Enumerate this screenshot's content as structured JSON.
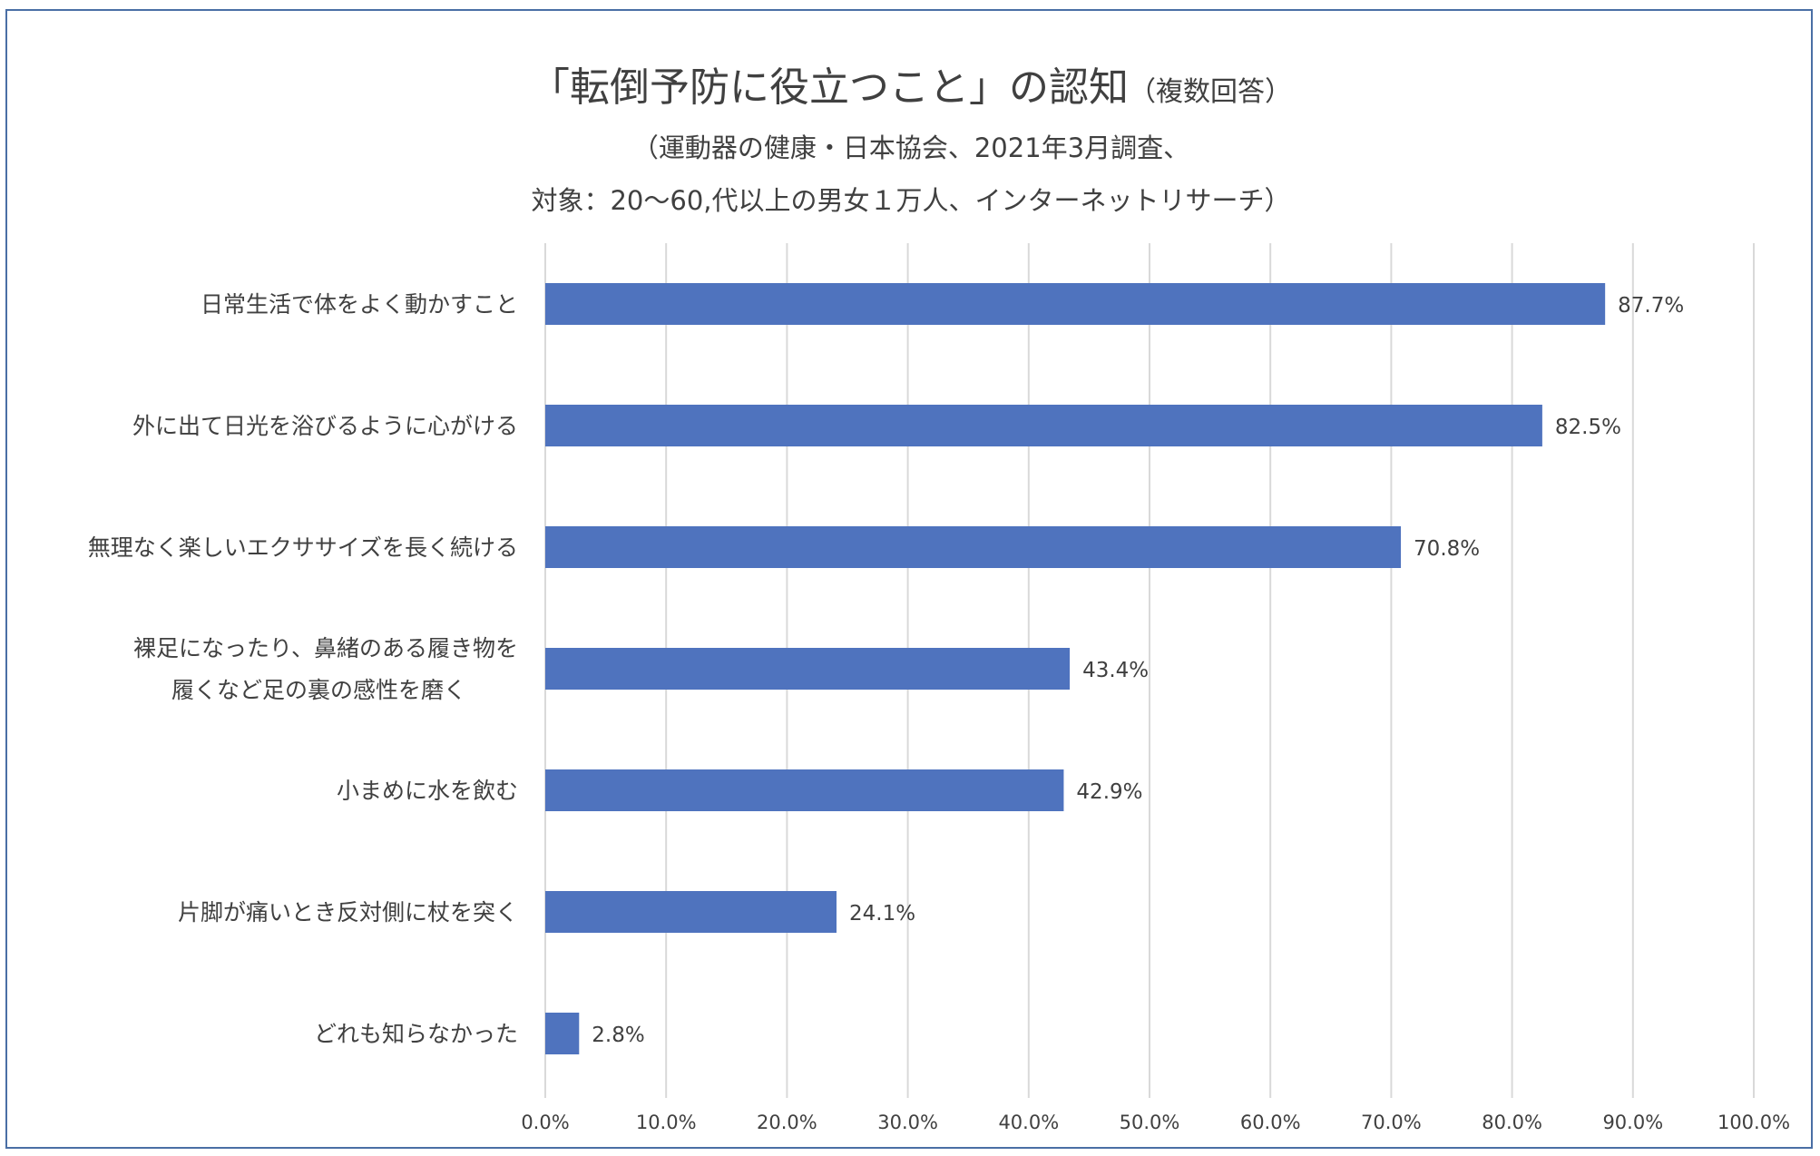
{
  "chart_data": {
    "type": "bar",
    "orientation": "horizontal",
    "title": "「転倒予防に役立つこと」の認知",
    "title_note": "（複数回答）",
    "subtitle_lines": [
      "（運動器の健康・日本協会、2021年3月調査、",
      "対象：20〜60,代以上の男女１万人、インターネットリサーチ）"
    ],
    "categories": [
      [
        "日常生活で体をよく動かすこと"
      ],
      [
        "外に出て日光を浴びるように心がける"
      ],
      [
        "無理なく楽しいエクササイズを長く続ける"
      ],
      [
        "裸足になったり、鼻緒のある履き物を",
        "履くなど足の裏の感性を磨く"
      ],
      [
        "小まめに水を飲む"
      ],
      [
        "片脚が痛いとき反対側に杖を突く"
      ],
      [
        "どれも知らなかった"
      ]
    ],
    "values": [
      87.7,
      82.5,
      70.8,
      43.4,
      42.9,
      24.1,
      2.8
    ],
    "data_labels": [
      "87.7%",
      "82.5%",
      "70.8%",
      "43.4%",
      "42.9%",
      "24.1%",
      "2.8%"
    ],
    "xlim": [
      0,
      100
    ],
    "x_ticks": [
      "0.0%",
      "10.0%",
      "20.0%",
      "30.0%",
      "40.0%",
      "50.0%",
      "60.0%",
      "70.0%",
      "80.0%",
      "90.0%",
      "100.0%"
    ],
    "grid": true,
    "legend": "none",
    "bar_color": "#4f73be",
    "grid_color": "#d9d9d9",
    "text_color": "#404040",
    "frame_color": "#4a6fa5"
  }
}
